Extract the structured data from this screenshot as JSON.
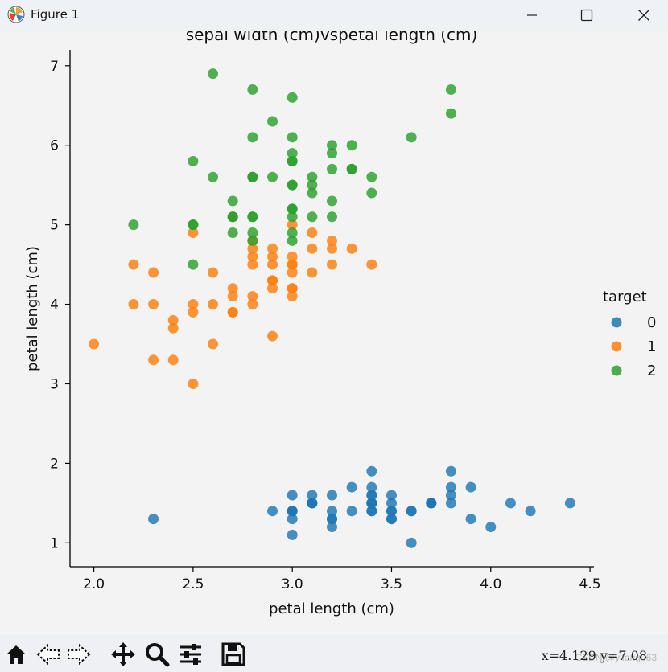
{
  "window": {
    "title": "Figure 1"
  },
  "colors": {
    "class0": "#1f77b4",
    "class1": "#ff7f0e",
    "class2": "#2ca02c"
  },
  "chart_data": {
    "type": "scatter",
    "title": "sepal width (cm)vspetal length (cm)",
    "xlabel": "petal length (cm)",
    "ylabel": "petal length (cm)",
    "xlim": [
      1.88,
      4.52
    ],
    "ylim": [
      0.7,
      7.2
    ],
    "xticks": [
      "2.0",
      "2.5",
      "3.0",
      "3.5",
      "4.0",
      "4.5"
    ],
    "yticks": [
      "1",
      "2",
      "3",
      "4",
      "5",
      "6",
      "7"
    ],
    "legend": {
      "title": "target",
      "position": "center-right",
      "labels": [
        "0",
        "1",
        "2"
      ]
    },
    "series": [
      {
        "name": "0",
        "points": [
          [
            3.5,
            1.4
          ],
          [
            3.0,
            1.4
          ],
          [
            3.2,
            1.3
          ],
          [
            3.1,
            1.5
          ],
          [
            3.6,
            1.4
          ],
          [
            3.9,
            1.7
          ],
          [
            3.4,
            1.4
          ],
          [
            3.4,
            1.5
          ],
          [
            2.9,
            1.4
          ],
          [
            3.1,
            1.5
          ],
          [
            3.7,
            1.5
          ],
          [
            3.4,
            1.6
          ],
          [
            3.0,
            1.4
          ],
          [
            3.0,
            1.1
          ],
          [
            4.0,
            1.2
          ],
          [
            4.4,
            1.5
          ],
          [
            3.9,
            1.3
          ],
          [
            3.5,
            1.4
          ],
          [
            3.8,
            1.7
          ],
          [
            3.8,
            1.5
          ],
          [
            3.4,
            1.7
          ],
          [
            3.7,
            1.5
          ],
          [
            3.6,
            1.0
          ],
          [
            3.3,
            1.7
          ],
          [
            3.4,
            1.9
          ],
          [
            3.0,
            1.6
          ],
          [
            3.4,
            1.6
          ],
          [
            3.5,
            1.5
          ],
          [
            3.4,
            1.4
          ],
          [
            3.2,
            1.6
          ],
          [
            3.1,
            1.6
          ],
          [
            3.4,
            1.5
          ],
          [
            4.1,
            1.5
          ],
          [
            4.2,
            1.4
          ],
          [
            3.1,
            1.5
          ],
          [
            3.2,
            1.2
          ],
          [
            3.5,
            1.3
          ],
          [
            3.6,
            1.4
          ],
          [
            3.0,
            1.3
          ],
          [
            3.4,
            1.5
          ],
          [
            3.5,
            1.3
          ],
          [
            2.3,
            1.3
          ],
          [
            3.2,
            1.3
          ],
          [
            3.5,
            1.6
          ],
          [
            3.8,
            1.9
          ],
          [
            3.0,
            1.4
          ],
          [
            3.8,
            1.6
          ],
          [
            3.2,
            1.4
          ],
          [
            3.7,
            1.5
          ],
          [
            3.3,
            1.4
          ]
        ]
      },
      {
        "name": "1",
        "points": [
          [
            3.2,
            4.7
          ],
          [
            3.2,
            4.5
          ],
          [
            3.1,
            4.9
          ],
          [
            2.3,
            4.0
          ],
          [
            2.8,
            4.6
          ],
          [
            2.8,
            4.5
          ],
          [
            3.3,
            4.7
          ],
          [
            2.4,
            3.3
          ],
          [
            2.9,
            4.6
          ],
          [
            2.7,
            3.9
          ],
          [
            2.0,
            3.5
          ],
          [
            3.0,
            4.2
          ],
          [
            2.2,
            4.0
          ],
          [
            2.9,
            4.7
          ],
          [
            2.9,
            3.6
          ],
          [
            3.1,
            4.4
          ],
          [
            3.0,
            4.5
          ],
          [
            2.7,
            4.1
          ],
          [
            2.2,
            4.5
          ],
          [
            2.5,
            3.9
          ],
          [
            3.2,
            4.8
          ],
          [
            2.8,
            4.0
          ],
          [
            2.5,
            4.9
          ],
          [
            2.8,
            4.7
          ],
          [
            2.9,
            4.3
          ],
          [
            3.0,
            4.4
          ],
          [
            2.8,
            4.8
          ],
          [
            3.0,
            5.0
          ],
          [
            2.9,
            4.5
          ],
          [
            2.6,
            3.5
          ],
          [
            2.4,
            3.8
          ],
          [
            2.4,
            3.7
          ],
          [
            2.7,
            3.9
          ],
          [
            2.7,
            5.1
          ],
          [
            3.0,
            4.5
          ],
          [
            3.4,
            4.5
          ],
          [
            3.1,
            4.7
          ],
          [
            2.3,
            4.4
          ],
          [
            3.0,
            4.1
          ],
          [
            2.5,
            4.0
          ],
          [
            2.6,
            4.4
          ],
          [
            3.0,
            4.6
          ],
          [
            2.6,
            4.0
          ],
          [
            2.3,
            3.3
          ],
          [
            2.7,
            4.2
          ],
          [
            3.0,
            4.2
          ],
          [
            2.9,
            4.2
          ],
          [
            2.9,
            4.3
          ],
          [
            2.5,
            3.0
          ],
          [
            2.8,
            4.1
          ]
        ]
      },
      {
        "name": "2",
        "points": [
          [
            3.3,
            6.0
          ],
          [
            2.7,
            5.1
          ],
          [
            3.0,
            5.9
          ],
          [
            2.9,
            5.6
          ],
          [
            3.0,
            5.8
          ],
          [
            3.0,
            6.6
          ],
          [
            2.5,
            4.5
          ],
          [
            2.9,
            6.3
          ],
          [
            2.5,
            5.8
          ],
          [
            3.6,
            6.1
          ],
          [
            3.2,
            5.1
          ],
          [
            2.7,
            5.3
          ],
          [
            3.0,
            5.5
          ],
          [
            2.5,
            5.0
          ],
          [
            2.8,
            5.1
          ],
          [
            3.2,
            5.3
          ],
          [
            3.0,
            5.5
          ],
          [
            3.8,
            6.7
          ],
          [
            2.6,
            6.9
          ],
          [
            2.2,
            5.0
          ],
          [
            3.2,
            5.7
          ],
          [
            2.8,
            4.9
          ],
          [
            2.8,
            6.7
          ],
          [
            2.7,
            4.9
          ],
          [
            3.3,
            5.7
          ],
          [
            3.2,
            6.0
          ],
          [
            2.8,
            4.8
          ],
          [
            3.0,
            4.9
          ],
          [
            2.8,
            5.6
          ],
          [
            3.0,
            5.8
          ],
          [
            2.8,
            6.1
          ],
          [
            3.8,
            6.4
          ],
          [
            2.8,
            5.6
          ],
          [
            2.8,
            5.1
          ],
          [
            2.6,
            5.6
          ],
          [
            3.0,
            6.1
          ],
          [
            3.4,
            5.6
          ],
          [
            3.1,
            5.5
          ],
          [
            3.0,
            4.8
          ],
          [
            3.1,
            5.4
          ],
          [
            3.1,
            5.6
          ],
          [
            3.1,
            5.1
          ],
          [
            2.7,
            5.1
          ],
          [
            3.2,
            5.9
          ],
          [
            3.3,
            5.7
          ],
          [
            3.0,
            5.2
          ],
          [
            2.5,
            5.0
          ],
          [
            3.0,
            5.2
          ],
          [
            3.4,
            5.4
          ],
          [
            3.0,
            5.1
          ]
        ]
      }
    ]
  },
  "toolbar": {
    "coords": "x=4.129  y=7.08",
    "watermark": "CSDN @yifang063"
  }
}
